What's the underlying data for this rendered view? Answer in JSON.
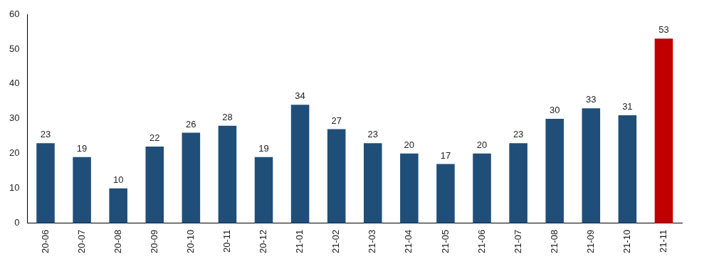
{
  "chart_data": {
    "type": "bar",
    "categories": [
      "20-06",
      "20-07",
      "20-08",
      "20-09",
      "20-10",
      "20-11",
      "20-12",
      "21-01",
      "21-02",
      "21-03",
      "21-04",
      "21-05",
      "21-06",
      "21-07",
      "21-08",
      "21-09",
      "21-10",
      "21-11"
    ],
    "values": [
      23,
      19,
      10,
      22,
      26,
      28,
      19,
      34,
      27,
      23,
      20,
      17,
      20,
      23,
      30,
      33,
      31,
      53
    ],
    "colors": [
      "#1f4e79",
      "#1f4e79",
      "#1f4e79",
      "#1f4e79",
      "#1f4e79",
      "#1f4e79",
      "#1f4e79",
      "#1f4e79",
      "#1f4e79",
      "#1f4e79",
      "#1f4e79",
      "#1f4e79",
      "#1f4e79",
      "#1f4e79",
      "#1f4e79",
      "#1f4e79",
      "#1f4e79",
      "#c00000"
    ],
    "ylim": [
      0,
      60
    ],
    "yticks": [
      0,
      10,
      20,
      30,
      40,
      50,
      60
    ],
    "grid": false,
    "data_labels": true
  }
}
